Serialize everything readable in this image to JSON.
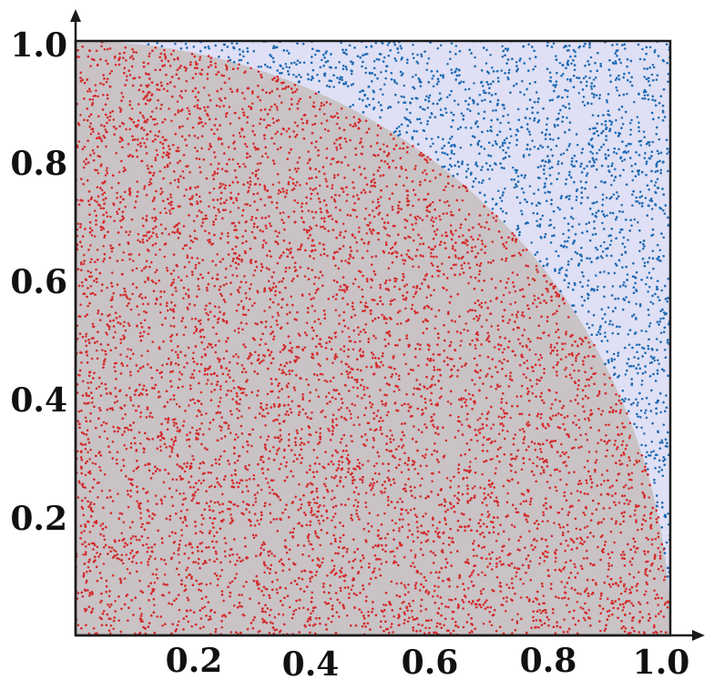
{
  "chart_data": {
    "type": "scatter",
    "title": "",
    "xlabel": "",
    "ylabel": "",
    "xlim": [
      0,
      1
    ],
    "ylim": [
      0,
      1
    ],
    "grid": false,
    "legend": "none",
    "x_ticks": [
      "0.2",
      "0.4",
      "0.6",
      "0.8",
      "1.0"
    ],
    "x_tick_values": [
      0.2,
      0.4,
      0.6,
      0.8,
      1.0
    ],
    "y_ticks": [
      "0.2",
      "0.4",
      "0.6",
      "0.8",
      "1.0"
    ],
    "y_tick_values": [
      0.2,
      0.4,
      0.6,
      0.8,
      1.0
    ],
    "boundary": {
      "shape": "quarter-circle",
      "center": [
        0,
        0
      ],
      "radius": 1
    },
    "series": [
      {
        "region": "inside",
        "color": "#d42a2a",
        "background": "#c9c3c6"
      },
      {
        "region": "outside",
        "color": "#1f6ab3",
        "background": "#dfe0f5"
      }
    ]
  }
}
